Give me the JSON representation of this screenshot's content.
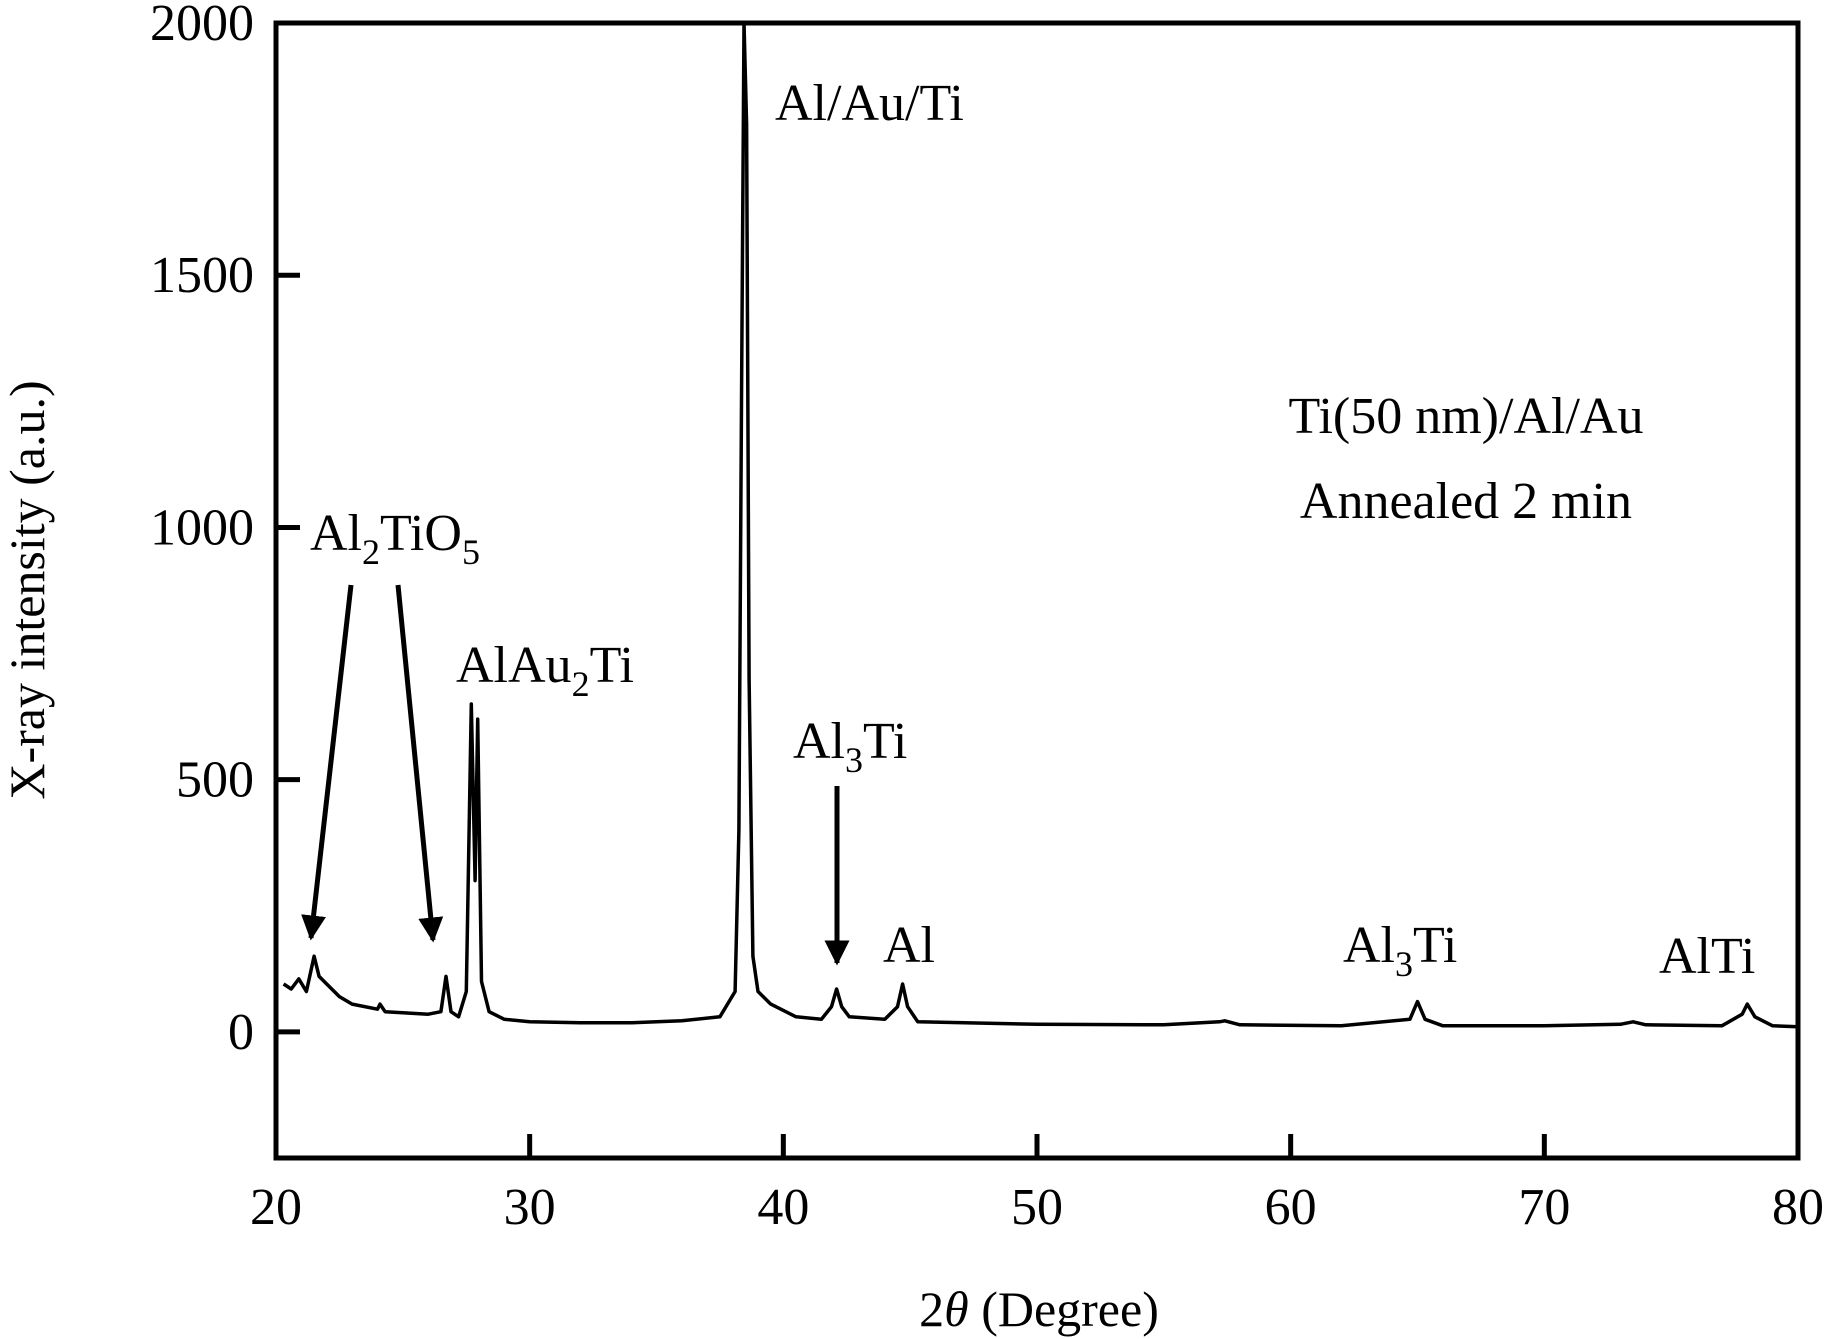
{
  "chart_data": {
    "type": "line",
    "title": "",
    "xlabel_prefix": "2",
    "xlabel_symbol": "θ",
    "xlabel_suffix": " (Degree)",
    "ylabel": "X-ray intensity (a.u.)",
    "xlim": [
      20,
      80
    ],
    "ylim": [
      -250,
      2000
    ],
    "xticks": [
      20,
      30,
      40,
      50,
      60,
      70,
      80
    ],
    "yticks": [
      0,
      500,
      1000,
      1500,
      2000
    ],
    "grid": false,
    "line_color": "#000000",
    "series": [
      {
        "x": [
          20.3,
          20.6,
          20.9,
          21.2,
          21.5,
          21.7,
          22,
          22.5,
          23,
          24,
          24.1,
          24.3,
          25,
          26,
          26.5,
          26.7,
          26.9,
          27.2,
          27.5,
          27.7,
          27.85,
          27.95,
          28.1,
          28.4,
          29,
          30,
          32,
          34,
          36,
          37.5,
          38.1,
          38.25,
          38.35,
          38.45,
          38.55,
          38.65,
          38.8,
          39,
          39.5,
          40.5,
          41.5,
          41.9,
          42.1,
          42.3,
          42.6,
          44,
          44.5,
          44.7,
          44.9,
          45.3,
          50,
          55,
          57.2,
          57.4,
          58,
          62,
          64.7,
          65,
          65.3,
          66,
          70,
          73,
          73.5,
          74,
          77,
          77.8,
          78,
          78.3,
          79,
          80
        ],
        "y": [
          95,
          85,
          105,
          80,
          150,
          110,
          95,
          70,
          55,
          45,
          55,
          40,
          38,
          35,
          40,
          110,
          40,
          30,
          80,
          650,
          300,
          620,
          100,
          40,
          25,
          20,
          18,
          18,
          22,
          30,
          80,
          400,
          1250,
          2000,
          1800,
          700,
          150,
          80,
          55,
          30,
          25,
          50,
          85,
          50,
          30,
          25,
          50,
          95,
          50,
          20,
          15,
          14,
          20,
          22,
          14,
          12,
          25,
          60,
          25,
          12,
          12,
          15,
          20,
          14,
          12,
          35,
          55,
          30,
          12,
          10
        ]
      }
    ],
    "annotations": {
      "main_peak": "Al/Au/Ti",
      "sample_line1": "Ti(50 nm)/Al/Au",
      "sample_line2": "Annealed 2 min",
      "al2tio5": {
        "a": "Al",
        "s1": "2",
        "b": "TiO",
        "s2": "5"
      },
      "alau2ti": {
        "a": "AlAu",
        "s1": "2",
        "b": "Ti"
      },
      "al3ti_42": {
        "a": "Al",
        "s1": "3",
        "b": "Ti"
      },
      "al_45": "Al",
      "al3ti_65": {
        "a": "Al",
        "s1": "3",
        "b": "Ti"
      },
      "alti_78": "AlTi"
    }
  }
}
